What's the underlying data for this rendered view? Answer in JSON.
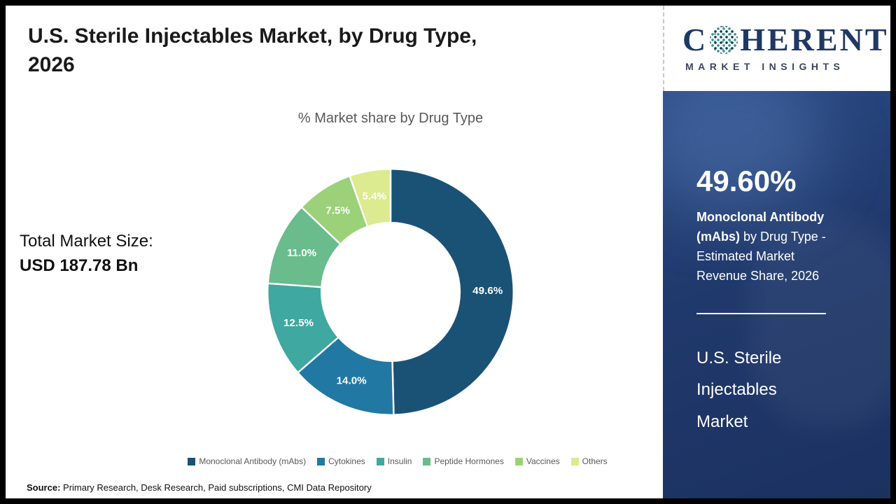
{
  "page": {
    "title_lines": [
      "U.S. Sterile Injectables Market, by Drug Type,",
      "2026"
    ],
    "source_label": "Source:",
    "source_text": " Primary Research, Desk Research, Paid subscriptions, CMI Data Repository"
  },
  "logo": {
    "line1_pre": "C",
    "line1_post": "HERENT",
    "line2": "MARKET INSIGHTS"
  },
  "left_panel": {
    "total_label": "Total Market Size:",
    "total_value": "USD 187.78 Bn"
  },
  "sidebar": {
    "stat_value": "49.60%",
    "stat_bold": "Monoclonal Antibody (mAbs)",
    "stat_rest": " by Drug Type - Estimated Market Revenue Share, 2026",
    "market_name": "U.S. Sterile Injectables Market",
    "bg_color": "#20396c"
  },
  "chart_data": {
    "type": "pie",
    "donut": true,
    "title": "% Market share by Drug Type",
    "categories": [
      "Monoclonal Antibody (mAbs)",
      "Cytokines",
      "Insulin",
      "Peptide Hormones",
      "Vaccines",
      "Others"
    ],
    "values": [
      49.6,
      14.0,
      12.5,
      11.0,
      7.5,
      5.4
    ],
    "labels": [
      "49.6%",
      "14.0%",
      "12.5%",
      "11.0%",
      "7.5%",
      "5.4%"
    ],
    "colors": [
      "#1a5276",
      "#2179a3",
      "#3fa8a0",
      "#6abc8d",
      "#9bd279",
      "#dcea90"
    ],
    "start_angle_deg": 0,
    "direction": "clockwise",
    "legend_position": "bottom",
    "units": "percent"
  }
}
